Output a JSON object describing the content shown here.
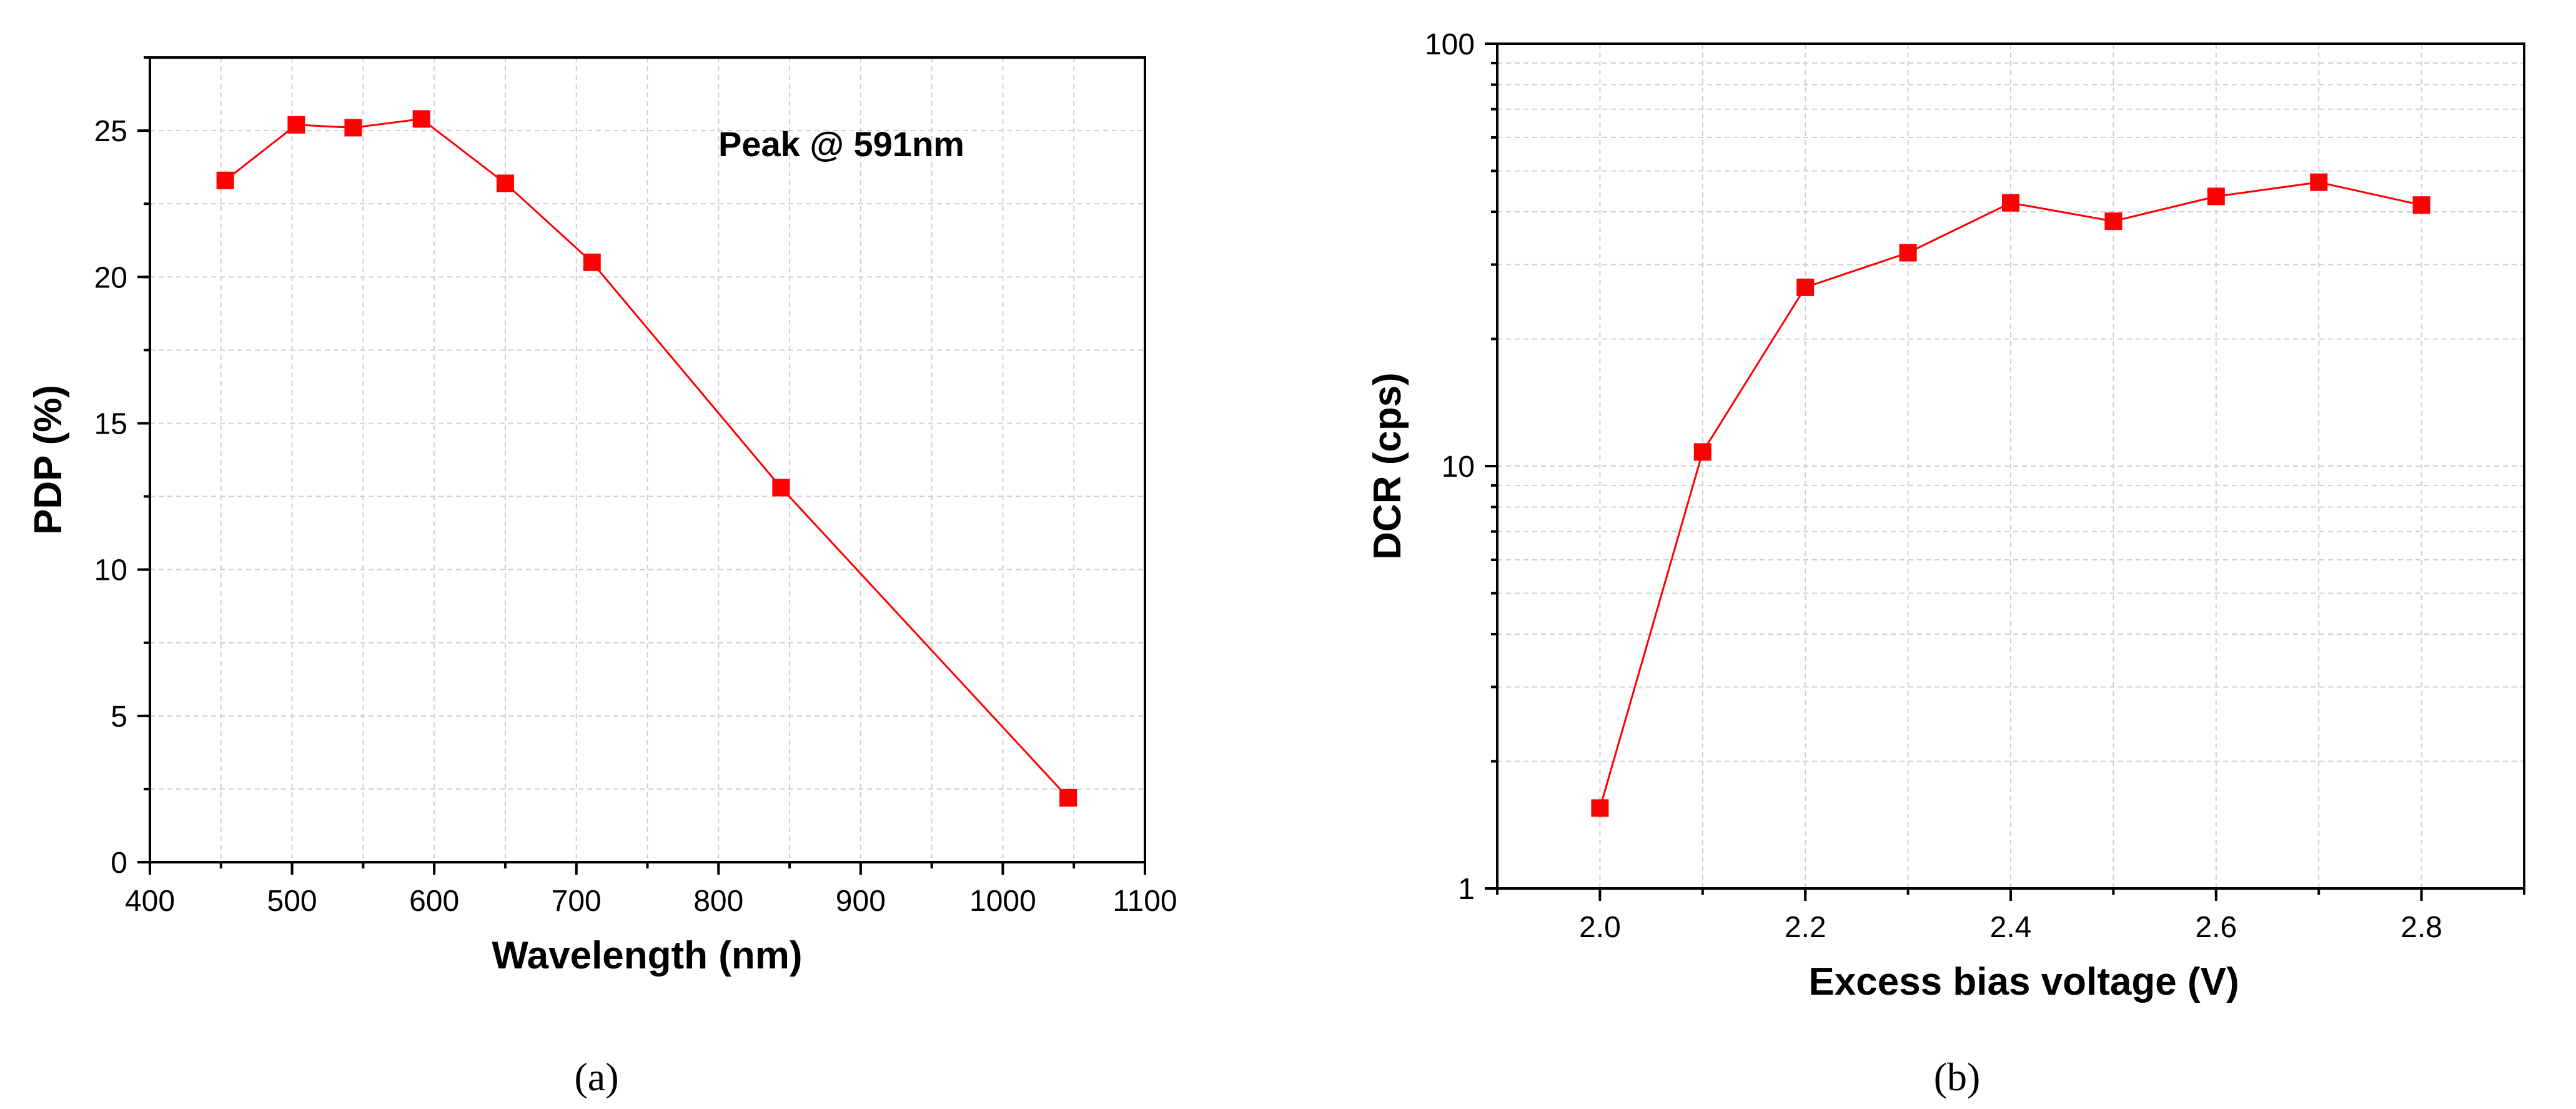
{
  "chart_data": [
    {
      "type": "line",
      "panel_caption": "(a)",
      "title": "",
      "xlabel": "Wavelength (nm)",
      "ylabel": "PDP (%)",
      "xlim": [
        400,
        1100
      ],
      "ylim": [
        0,
        27.5
      ],
      "xscale": "linear",
      "yscale": "linear",
      "xticks": [
        400,
        500,
        600,
        700,
        800,
        900,
        1000,
        1100
      ],
      "yticks": [
        0,
        5,
        10,
        15,
        20,
        25
      ],
      "xtick_labels": [
        "400",
        "500",
        "600",
        "700",
        "800",
        "900",
        "1000",
        "1100"
      ],
      "ytick_labels": [
        "0",
        "5",
        "10",
        "15",
        "20",
        "25"
      ],
      "grid": true,
      "annotation": "Peak @ 591nm",
      "series": [
        {
          "name": "PDP",
          "color": "#ff0000",
          "marker": "square",
          "x": [
            453,
            503,
            543,
            591,
            650,
            711,
            844,
            1046
          ],
          "y": [
            23.3,
            25.2,
            25.1,
            25.4,
            23.2,
            20.5,
            12.8,
            2.2
          ]
        }
      ]
    },
    {
      "type": "line",
      "panel_caption": "(b)",
      "title": "",
      "xlabel": "Excess bias voltage (V)",
      "ylabel": "DCR (cps)",
      "xlim": [
        1.9,
        2.9
      ],
      "ylim": [
        1,
        100
      ],
      "xscale": "linear",
      "yscale": "log",
      "xticks": [
        2.0,
        2.2,
        2.4,
        2.6,
        2.8
      ],
      "yticks": [
        1,
        10,
        100
      ],
      "xtick_labels": [
        "2.0",
        "2.2",
        "2.4",
        "2.6",
        "2.8"
      ],
      "ytick_labels": [
        "1",
        "10",
        "100"
      ],
      "grid": true,
      "series": [
        {
          "name": "DCR",
          "color": "#ff0000",
          "marker": "square",
          "x": [
            2.0,
            2.1,
            2.2,
            2.3,
            2.4,
            2.5,
            2.6,
            2.7,
            2.8
          ],
          "y": [
            1.55,
            10.8,
            26.5,
            32,
            42,
            38,
            43.5,
            47,
            41.5
          ]
        }
      ]
    }
  ]
}
